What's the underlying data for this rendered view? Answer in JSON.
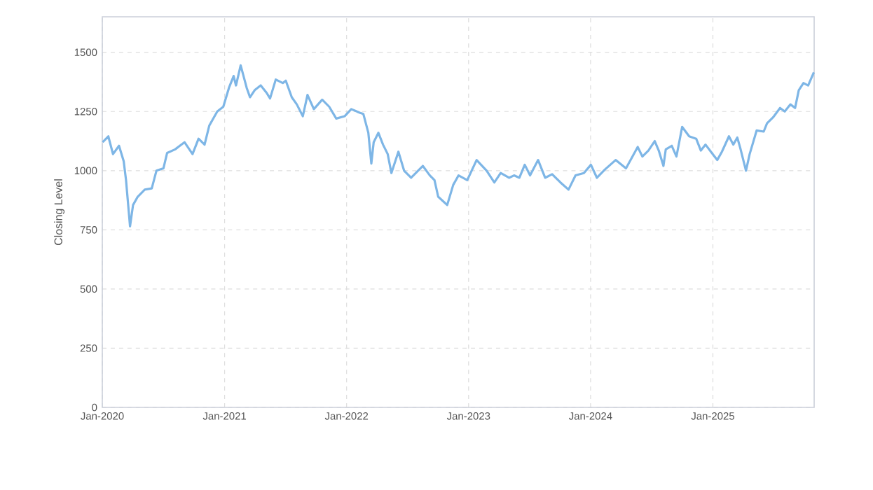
{
  "chart_data": {
    "type": "line",
    "ylabel": "Closing Level",
    "grid": true,
    "line_style": "solid",
    "marker": "none",
    "xlim": [
      "2020-01-01",
      "2025-10-31"
    ],
    "ylim": [
      0,
      1650
    ],
    "xticks": [
      {
        "value": "2020-01-01",
        "label": "Jan-2020"
      },
      {
        "value": "2021-01-01",
        "label": "Jan-2021"
      },
      {
        "value": "2022-01-01",
        "label": "Jan-2022"
      },
      {
        "value": "2023-01-01",
        "label": "Jan-2023"
      },
      {
        "value": "2024-01-01",
        "label": "Jan-2024"
      },
      {
        "value": "2025-01-01",
        "label": "Jan-2025"
      }
    ],
    "yticks": [
      0,
      250,
      500,
      750,
      1000,
      1250,
      1500
    ],
    "series": [
      {
        "color": "#7eb6e6",
        "x": [
          "2020-01-02",
          "2020-01-19",
          "2020-02-02",
          "2020-02-20",
          "2020-03-05",
          "2020-03-12",
          "2020-03-24",
          "2020-04-02",
          "2020-04-16",
          "2020-05-07",
          "2020-05-28",
          "2020-06-11",
          "2020-07-02",
          "2020-07-13",
          "2020-08-06",
          "2020-09-03",
          "2020-09-27",
          "2020-10-15",
          "2020-11-02",
          "2020-11-16",
          "2020-12-10",
          "2020-12-28",
          "2021-01-14",
          "2021-01-28",
          "2021-02-04",
          "2021-02-18",
          "2021-03-08",
          "2021-03-18",
          "2021-04-01",
          "2021-04-19",
          "2021-05-06",
          "2021-05-17",
          "2021-06-03",
          "2021-06-24",
          "2021-07-03",
          "2021-07-21",
          "2021-08-05",
          "2021-08-23",
          "2021-09-06",
          "2021-09-25",
          "2021-10-20",
          "2021-11-10",
          "2021-12-01",
          "2021-12-26",
          "2022-01-15",
          "2022-02-09",
          "2022-02-20",
          "2022-03-07",
          "2022-03-16",
          "2022-03-23",
          "2022-04-06",
          "2022-04-20",
          "2022-05-04",
          "2022-05-15",
          "2022-06-05",
          "2022-06-22",
          "2022-07-13",
          "2022-08-17",
          "2022-09-07",
          "2022-09-21",
          "2022-10-02",
          "2022-10-29",
          "2022-11-16",
          "2022-12-02",
          "2022-12-28",
          "2023-01-25",
          "2023-02-24",
          "2023-03-19",
          "2023-04-07",
          "2023-05-02",
          "2023-05-17",
          "2023-06-02",
          "2023-06-18",
          "2023-07-04",
          "2023-07-28",
          "2023-08-18",
          "2023-09-08",
          "2023-10-03",
          "2023-10-27",
          "2023-11-17",
          "2023-12-12",
          "2024-01-02",
          "2024-01-20",
          "2024-02-13",
          "2024-03-16",
          "2024-04-16",
          "2024-05-21",
          "2024-06-04",
          "2024-06-22",
          "2024-07-11",
          "2024-07-23",
          "2024-08-06",
          "2024-08-13",
          "2024-08-31",
          "2024-09-14",
          "2024-10-01",
          "2024-10-22",
          "2024-11-12",
          "2024-11-26",
          "2024-12-10",
          "2024-12-26",
          "2025-01-14",
          "2025-01-28",
          "2025-02-18",
          "2025-03-03",
          "2025-03-15",
          "2025-03-24",
          "2025-04-10",
          "2025-04-21",
          "2025-05-12",
          "2025-06-02",
          "2025-06-12",
          "2025-06-30",
          "2025-07-21",
          "2025-08-04",
          "2025-08-21",
          "2025-09-04",
          "2025-09-15",
          "2025-09-29",
          "2025-10-13",
          "2025-10-30"
        ],
        "values": [
          1120,
          1145,
          1070,
          1105,
          1040,
          960,
          765,
          855,
          890,
          920,
          925,
          1000,
          1010,
          1075,
          1090,
          1120,
          1070,
          1135,
          1110,
          1190,
          1250,
          1270,
          1350,
          1400,
          1360,
          1445,
          1350,
          1310,
          1340,
          1360,
          1330,
          1305,
          1385,
          1370,
          1380,
          1310,
          1280,
          1230,
          1320,
          1260,
          1300,
          1270,
          1220,
          1230,
          1260,
          1245,
          1240,
          1160,
          1030,
          1120,
          1160,
          1110,
          1070,
          990,
          1080,
          1000,
          970,
          1020,
          980,
          960,
          890,
          855,
          940,
          980,
          960,
          1045,
          1000,
          950,
          990,
          970,
          980,
          970,
          1025,
          980,
          1045,
          970,
          985,
          950,
          920,
          980,
          990,
          1025,
          970,
          1005,
          1045,
          1010,
          1100,
          1060,
          1085,
          1125,
          1085,
          1020,
          1090,
          1105,
          1060,
          1185,
          1145,
          1135,
          1085,
          1110,
          1080,
          1045,
          1080,
          1145,
          1110,
          1140,
          1095,
          1000,
          1070,
          1170,
          1165,
          1200,
          1225,
          1265,
          1250,
          1280,
          1265,
          1340,
          1370,
          1360,
          1415
        ]
      }
    ]
  }
}
